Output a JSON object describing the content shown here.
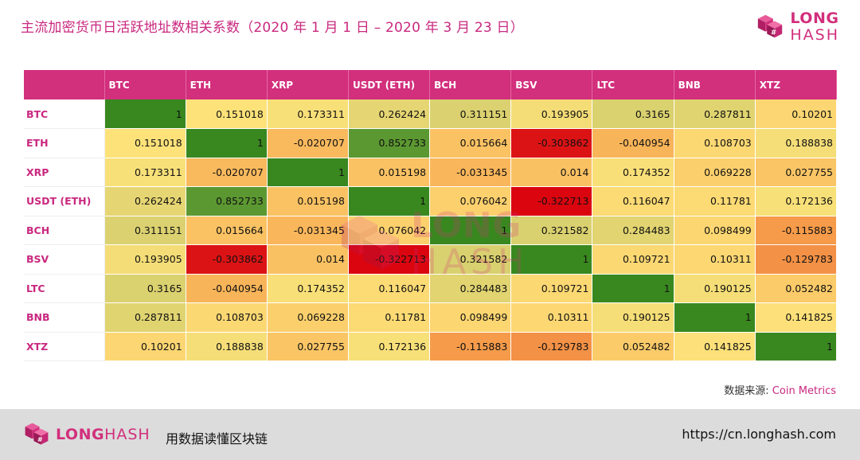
{
  "title": "主流加密货币日活跃地址数相关系数（2020 年 1 月 1 日 – 2020 年 3 月 23 日）",
  "brand": {
    "name_bold": "LONG",
    "name_light": "HASH",
    "slogan": "用数据读懂区块链",
    "url": "https://cn.longhash.com",
    "color": "#d22f7c"
  },
  "source": {
    "label": "数据来源:",
    "value": "Coin Metrics"
  },
  "chart_data": {
    "type": "heatmap",
    "title": "主流加密货币日活跃地址数相关系数（2020 年 1 月 1 日 – 2020 年 3 月 23 日）",
    "columns": [
      "BTC",
      "ETH",
      "XRP",
      "USDT (ETH)",
      "BCH",
      "BSV",
      "LTC",
      "BNB",
      "XTZ"
    ],
    "rows": [
      "BTC",
      "ETH",
      "XRP",
      "USDT (ETH)",
      "BCH",
      "BSV",
      "LTC",
      "BNB",
      "XTZ"
    ],
    "values": [
      [
        "1",
        "0.151018",
        "0.173311",
        "0.262424",
        "0.311151",
        "0.193905",
        "0.3165",
        "0.287811",
        "0.10201"
      ],
      [
        "0.151018",
        "1",
        "-0.020707",
        "0.852733",
        "0.015664",
        "-0.303862",
        "-0.040954",
        "0.108703",
        "0.188838"
      ],
      [
        "0.173311",
        "-0.020707",
        "1",
        "0.015198",
        "-0.031345",
        "0.014",
        "0.174352",
        "0.069228",
        "0.027755"
      ],
      [
        "0.262424",
        "0.852733",
        "0.015198",
        "1",
        "0.076042",
        "-0.322713",
        "0.116047",
        "0.11781",
        "0.172136"
      ],
      [
        "0.311151",
        "0.015664",
        "-0.031345",
        "0.076042",
        "1",
        "0.321582",
        "0.284483",
        "0.098499",
        "-0.115883"
      ],
      [
        "0.193905",
        "-0.303862",
        "0.014",
        "-0.322713",
        "0.321582",
        "1",
        "0.109721",
        "0.10311",
        "-0.129783"
      ],
      [
        "0.3165",
        "-0.040954",
        "0.174352",
        "0.116047",
        "0.284483",
        "0.109721",
        "1",
        "0.190125",
        "0.052482"
      ],
      [
        "0.287811",
        "0.108703",
        "0.069228",
        "0.11781",
        "0.098499",
        "0.10311",
        "0.190125",
        "1",
        "0.141825"
      ],
      [
        "0.10201",
        "0.188838",
        "0.027755",
        "0.172136",
        "-0.115883",
        "-0.129783",
        "0.052482",
        "0.141825",
        "1"
      ]
    ],
    "color_scale": {
      "low": "#d9000d",
      "mid_low": "#f7a64f",
      "mid": "#fde27a",
      "mid_high": "#c9c86a",
      "high": "#39881f"
    }
  }
}
